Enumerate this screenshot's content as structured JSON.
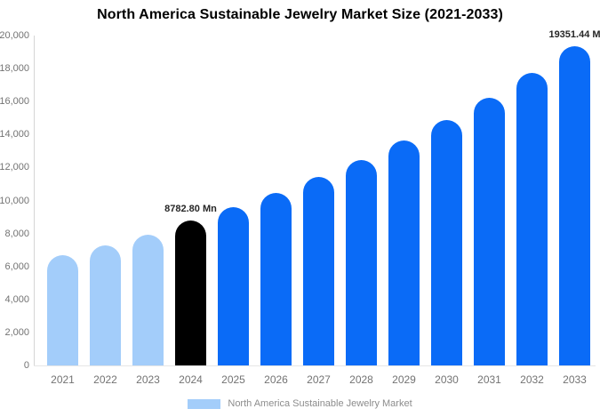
{
  "chart_data": {
    "type": "bar",
    "title": "North America Sustainable Jewelry Market Size (2021-2033)",
    "categories": [
      "2021",
      "2022",
      "2023",
      "2024",
      "2025",
      "2026",
      "2027",
      "2028",
      "2029",
      "2030",
      "2031",
      "2032",
      "2033"
    ],
    "values": [
      6700,
      7280,
      7950,
      8782.8,
      9590,
      10470,
      11430,
      12480,
      13620,
      14880,
      16240,
      17730,
      19351.44
    ],
    "bar_colors": [
      "#A3CDFA",
      "#A3CDFA",
      "#A3CDFA",
      "#000000",
      "#0A6BF7",
      "#0A6BF7",
      "#0A6BF7",
      "#0A6BF7",
      "#0A6BF7",
      "#0A6BF7",
      "#0A6BF7",
      "#0A6BF7",
      "#0A6BF7"
    ],
    "xlabel": "",
    "ylabel": "",
    "ylim": [
      0,
      20000
    ],
    "yticks": [
      0,
      2000,
      4000,
      6000,
      8000,
      10000,
      12000,
      14000,
      16000,
      18000,
      20000
    ],
    "ytick_labels": [
      "0",
      "2,000",
      "4,000",
      "6,000",
      "8,000",
      "10,000",
      "12,000",
      "14,000",
      "16,000",
      "18,000",
      "20,000"
    ],
    "grid": false,
    "annotations": [
      {
        "text": "8782.80 Mn",
        "category": "2024"
      },
      {
        "text": "19351.44 M",
        "category": "2033"
      }
    ],
    "legend_position": "bottom",
    "legend": [
      {
        "label": "North America Sustainable Jewelry Market",
        "swatch_color": "#A3CDFA"
      }
    ],
    "colors": {
      "historical_bar": "#A3CDFA",
      "highlight_bar": "#000000",
      "forecast_bar": "#0A6BF7",
      "axis_text": "#737373",
      "legend_text": "#8c8c8c",
      "annotation_text": "#262626",
      "title_text": "#000000"
    }
  }
}
